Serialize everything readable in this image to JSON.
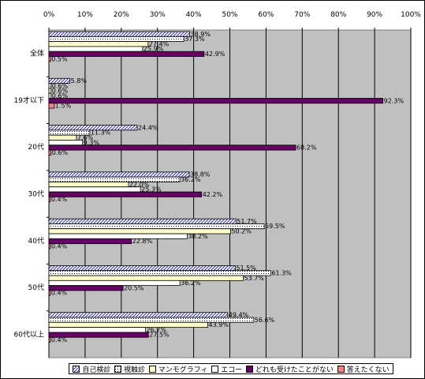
{
  "chart_data": {
    "type": "bar",
    "orientation": "horizontal",
    "categories": [
      "全体",
      "19才以下",
      "20代",
      "30代",
      "40代",
      "50代",
      "60代以上"
    ],
    "xlim": [
      0,
      100
    ],
    "x_ticks": [
      "0%",
      "10%",
      "20%",
      "30%",
      "40%",
      "50%",
      "60%",
      "70%",
      "80%",
      "90%",
      "100%"
    ],
    "grid": true,
    "legend_position": "bottom",
    "plot_background": "#C0C0C0",
    "series": [
      {
        "name": "自己検診",
        "values": [
          38.9,
          5.8,
          24.4,
          38.8,
          51.7,
          51.5,
          49.4
        ],
        "labels": [
          "38.9%",
          "5.8%",
          "24.4%",
          "38.8%",
          "51.7%",
          "51.5%",
          "49.4%"
        ],
        "fill": "#FFFFFF",
        "pattern": "diag-blue",
        "pattern_color": "#333399"
      },
      {
        "name": "視触診",
        "values": [
          37.3,
          0.6,
          11.3,
          36.2,
          59.5,
          61.3,
          56.6
        ],
        "labels": [
          "37.3%",
          "0.6%",
          "11.3%",
          "36.2%",
          "59.5%",
          "61.3%",
          "56.6%"
        ],
        "fill": "#FFFFFF",
        "pattern": "dots",
        "pattern_color": "#000000"
      },
      {
        "name": "マンモグラフィ",
        "values": [
          27.4,
          0.6,
          7.6,
          22.0,
          50.2,
          53.7,
          43.9
        ],
        "labels": [
          "27.4%",
          "0.6%",
          "7.6%",
          "22.0%",
          "50.2%",
          "53.7%",
          "43.9%"
        ],
        "fill": "#FFFFCC",
        "pattern": "none",
        "pattern_color": "#000000"
      },
      {
        "name": "エコー",
        "values": [
          25.9,
          0.6,
          9.3,
          25.3,
          38.2,
          36.2,
          26.7
        ],
        "labels": [
          "25.9%",
          "0.6%",
          "9.3%",
          "25.3%",
          "38.2%",
          "36.2%",
          "26.7%"
        ],
        "fill": "#FFFFFF",
        "pattern": "none",
        "pattern_color": "#000000"
      },
      {
        "name": "どれも受けたことがない",
        "values": [
          42.9,
          92.3,
          68.2,
          42.2,
          22.8,
          20.5,
          27.5
        ],
        "labels": [
          "42.9%",
          "92.3%",
          "68.2%",
          "42.2%",
          "22.8%",
          "20.5%",
          "27.5%"
        ],
        "fill": "#660066",
        "pattern": "none",
        "pattern_color": "#000000"
      },
      {
        "name": "答えたくない",
        "values": [
          0.5,
          1.5,
          0.6,
          0.4,
          0.4,
          0.4,
          0.4
        ],
        "labels": [
          "0.5%",
          "1.5%",
          "0.6%",
          "0.4%",
          "0.4%",
          "0.4%",
          "0.4%"
        ],
        "fill": "#FF8080",
        "pattern": "none",
        "pattern_color": "#000000"
      }
    ]
  }
}
